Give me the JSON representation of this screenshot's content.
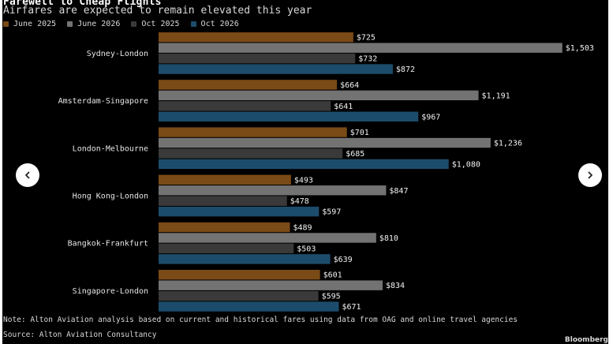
{
  "title": "Farewell to Cheap Flights",
  "subtitle": "Airfares are expected to remain elevated this year",
  "legend": [
    {
      "label": "June 2025",
      "color": "#7a4a17"
    },
    {
      "label": "June 2026",
      "color": "#737373"
    },
    {
      "label": "Oct 2025",
      "color": "#3a3a3a"
    },
    {
      "label": "Oct 2026",
      "color": "#1c4c6b"
    }
  ],
  "chart_data": {
    "type": "bar",
    "orientation": "horizontal",
    "categories": [
      "Sydney-London",
      "Amsterdam-Singapore",
      "London-Melbourne",
      "Hong Kong-London",
      "Bangkok-Frankfurt",
      "Singapore-London"
    ],
    "series": [
      {
        "name": "June 2025",
        "color": "#7a4a17",
        "values": [
          725,
          664,
          701,
          493,
          489,
          601
        ],
        "labels": [
          "$725",
          "$664",
          "$701",
          "$493",
          "$489",
          "$601"
        ]
      },
      {
        "name": "June 2026",
        "color": "#737373",
        "values": [
          1503,
          1191,
          1236,
          847,
          810,
          834
        ],
        "labels": [
          "$1,503",
          "$1,191",
          "$1,236",
          "$847",
          "$810",
          "$834"
        ]
      },
      {
        "name": "Oct 2025",
        "color": "#3a3a3a",
        "values": [
          732,
          641,
          685,
          478,
          503,
          595
        ],
        "labels": [
          "$732",
          "$641",
          "$685",
          "$478",
          "$503",
          "$595"
        ]
      },
      {
        "name": "Oct 2026",
        "color": "#1c4c6b",
        "values": [
          872,
          967,
          1080,
          597,
          639,
          671
        ],
        "labels": [
          "$872",
          "$967",
          "$1,080",
          "$597",
          "$639",
          "$671"
        ]
      }
    ],
    "xlim": [
      0,
      1550
    ],
    "grid": false,
    "legend_position": "top-left"
  },
  "note": "Note: Alton Aviation analysis based on current and historical fares using data from OAG and online travel agencies",
  "source": "Source: Alton Aviation Consultancy",
  "brand": "Bloomberg",
  "icons": {
    "prev": "chevron-left-icon",
    "next": "chevron-right-icon"
  }
}
